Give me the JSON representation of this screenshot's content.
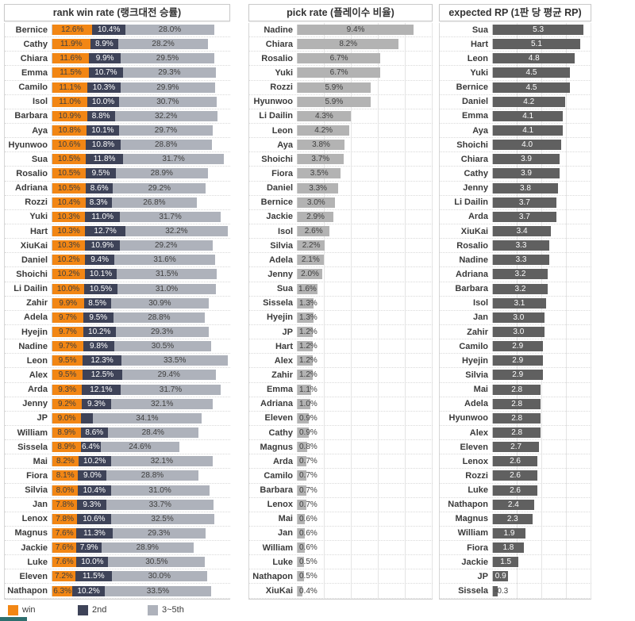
{
  "page": {
    "background": "#ffffff"
  },
  "legend": {
    "items": [
      {
        "label": "win",
        "color": "#F28614"
      },
      {
        "label": "2nd",
        "color": "#3E4358"
      },
      {
        "label": "3~5th",
        "color": "#AEB2BB"
      }
    ]
  },
  "artifacts": {
    "bottom_left_strip_color": "#2E6F6F"
  },
  "chart_data": [
    {
      "type": "bar",
      "orientation": "horizontal",
      "stacked": true,
      "title": "rank win rate (랭크대전 승률)",
      "value_suffix": "%",
      "xlim": [
        0,
        56
      ],
      "grid": false,
      "legend_position": "bottom",
      "series": [
        {
          "name": "win",
          "color": "#F28614",
          "label_color": "#3F3F3F"
        },
        {
          "name": "2nd",
          "color": "#3E4358",
          "label_color": "#FFFFFF"
        },
        {
          "name": "3~5th",
          "color": "#AEB2BB",
          "label_color": "#3F3F3F"
        }
      ],
      "rows": [
        {
          "name": "Bernice",
          "values": [
            12.6,
            10.4,
            28.0
          ]
        },
        {
          "name": "Cathy",
          "values": [
            11.9,
            8.9,
            28.2
          ]
        },
        {
          "name": "Chiara",
          "values": [
            11.6,
            9.9,
            29.5
          ]
        },
        {
          "name": "Emma",
          "values": [
            11.5,
            10.7,
            29.3
          ]
        },
        {
          "name": "Camilo",
          "values": [
            11.1,
            10.3,
            29.9
          ]
        },
        {
          "name": "Isol",
          "values": [
            11.0,
            10.0,
            30.7
          ]
        },
        {
          "name": "Barbara",
          "values": [
            10.9,
            8.8,
            32.2
          ]
        },
        {
          "name": "Aya",
          "values": [
            10.8,
            10.1,
            29.7
          ]
        },
        {
          "name": "Hyunwoo",
          "values": [
            10.6,
            10.8,
            28.8
          ]
        },
        {
          "name": "Sua",
          "values": [
            10.5,
            11.8,
            31.7
          ]
        },
        {
          "name": "Rosalio",
          "values": [
            10.5,
            9.5,
            28.9
          ]
        },
        {
          "name": "Adriana",
          "values": [
            10.5,
            8.6,
            29.2
          ]
        },
        {
          "name": "Rozzi",
          "values": [
            10.4,
            8.3,
            26.8
          ]
        },
        {
          "name": "Yuki",
          "values": [
            10.3,
            11.0,
            31.7
          ]
        },
        {
          "name": "Hart",
          "values": [
            10.3,
            12.7,
            32.2
          ]
        },
        {
          "name": "XiuKai",
          "values": [
            10.3,
            10.9,
            29.2
          ]
        },
        {
          "name": "Daniel",
          "values": [
            10.2,
            9.4,
            31.6
          ]
        },
        {
          "name": "Shoichi",
          "values": [
            10.2,
            10.1,
            31.5
          ]
        },
        {
          "name": "Li Dailin",
          "values": [
            10.0,
            10.5,
            31.0
          ]
        },
        {
          "name": "Zahir",
          "values": [
            9.9,
            8.5,
            30.9
          ]
        },
        {
          "name": "Adela",
          "values": [
            9.7,
            9.5,
            28.8
          ]
        },
        {
          "name": "Hyejin",
          "values": [
            9.7,
            10.2,
            29.3
          ]
        },
        {
          "name": "Nadine",
          "values": [
            9.7,
            9.8,
            30.5
          ]
        },
        {
          "name": "Leon",
          "values": [
            9.5,
            12.3,
            33.5
          ]
        },
        {
          "name": "Alex",
          "values": [
            9.5,
            12.5,
            29.4
          ]
        },
        {
          "name": "Arda",
          "values": [
            9.3,
            12.1,
            31.7
          ]
        },
        {
          "name": "Jenny",
          "values": [
            9.2,
            9.3,
            32.1
          ]
        },
        {
          "name": "JP",
          "values": [
            9.0,
            3.8,
            34.1
          ],
          "unlabeled_segments": [
            1
          ]
        },
        {
          "name": "William",
          "values": [
            8.9,
            8.6,
            28.4
          ]
        },
        {
          "name": "Sissela",
          "values": [
            8.9,
            6.4,
            24.6
          ]
        },
        {
          "name": "Mai",
          "values": [
            8.2,
            10.2,
            32.1
          ]
        },
        {
          "name": "Fiora",
          "values": [
            8.1,
            9.0,
            28.8
          ]
        },
        {
          "name": "Silvia",
          "values": [
            8.0,
            10.4,
            31.0
          ]
        },
        {
          "name": "Jan",
          "values": [
            7.8,
            9.3,
            33.7
          ]
        },
        {
          "name": "Lenox",
          "values": [
            7.8,
            10.6,
            32.5
          ]
        },
        {
          "name": "Magnus",
          "values": [
            7.6,
            11.3,
            29.3
          ]
        },
        {
          "name": "Jackie",
          "values": [
            7.6,
            7.9,
            28.9
          ]
        },
        {
          "name": "Luke",
          "values": [
            7.6,
            10.0,
            30.5
          ]
        },
        {
          "name": "Eleven",
          "values": [
            7.2,
            11.5,
            30.0
          ]
        },
        {
          "name": "Nathapon",
          "values": [
            6.3,
            10.2,
            33.5
          ]
        }
      ]
    },
    {
      "type": "bar",
      "orientation": "horizontal",
      "stacked": false,
      "title": "pick rate (플레이수 비율)",
      "value_suffix": "%",
      "xlim": [
        0,
        11
      ],
      "grid": true,
      "bar_color": "#B3B3B3",
      "label_color": "#3F3F3F",
      "rows": [
        {
          "name": "Nadine",
          "value": 9.4
        },
        {
          "name": "Chiara",
          "value": 8.2
        },
        {
          "name": "Rosalio",
          "value": 6.7
        },
        {
          "name": "Yuki",
          "value": 6.7
        },
        {
          "name": "Rozzi",
          "value": 5.9
        },
        {
          "name": "Hyunwoo",
          "value": 5.9
        },
        {
          "name": "Li Dailin",
          "value": 4.3
        },
        {
          "name": "Leon",
          "value": 4.2
        },
        {
          "name": "Aya",
          "value": 3.8
        },
        {
          "name": "Shoichi",
          "value": 3.7
        },
        {
          "name": "Fiora",
          "value": 3.5
        },
        {
          "name": "Daniel",
          "value": 3.3
        },
        {
          "name": "Bernice",
          "value": 3.0
        },
        {
          "name": "Jackie",
          "value": 2.9
        },
        {
          "name": "Isol",
          "value": 2.6
        },
        {
          "name": "Silvia",
          "value": 2.2
        },
        {
          "name": "Adela",
          "value": 2.1
        },
        {
          "name": "Jenny",
          "value": 2.0
        },
        {
          "name": "Sua",
          "value": 1.6
        },
        {
          "name": "Sissela",
          "value": 1.3
        },
        {
          "name": "Hyejin",
          "value": 1.3
        },
        {
          "name": "JP",
          "value": 1.2
        },
        {
          "name": "Hart",
          "value": 1.2
        },
        {
          "name": "Alex",
          "value": 1.2
        },
        {
          "name": "Zahir",
          "value": 1.2
        },
        {
          "name": "Emma",
          "value": 1.1
        },
        {
          "name": "Adriana",
          "value": 1.0
        },
        {
          "name": "Eleven",
          "value": 0.9
        },
        {
          "name": "Cathy",
          "value": 0.9
        },
        {
          "name": "Magnus",
          "value": 0.8
        },
        {
          "name": "Arda",
          "value": 0.7
        },
        {
          "name": "Camilo",
          "value": 0.7
        },
        {
          "name": "Barbara",
          "value": 0.7
        },
        {
          "name": "Lenox",
          "value": 0.7
        },
        {
          "name": "Mai",
          "value": 0.6
        },
        {
          "name": "Jan",
          "value": 0.6
        },
        {
          "name": "William",
          "value": 0.6
        },
        {
          "name": "Luke",
          "value": 0.5
        },
        {
          "name": "Nathapon",
          "value": 0.5
        },
        {
          "name": "XiuKai",
          "value": 0.4
        }
      ]
    },
    {
      "type": "bar",
      "orientation": "horizontal",
      "stacked": false,
      "title": "expected RP (1판 당 평균 RP)",
      "value_suffix": "",
      "xlim": [
        0,
        5.8
      ],
      "grid": true,
      "bar_color": "#606060",
      "label_color": "#FFFFFF",
      "rows": [
        {
          "name": "Sua",
          "value": 5.3
        },
        {
          "name": "Hart",
          "value": 5.1
        },
        {
          "name": "Leon",
          "value": 4.8
        },
        {
          "name": "Yuki",
          "value": 4.5
        },
        {
          "name": "Bernice",
          "value": 4.5
        },
        {
          "name": "Daniel",
          "value": 4.2
        },
        {
          "name": "Emma",
          "value": 4.1
        },
        {
          "name": "Aya",
          "value": 4.1
        },
        {
          "name": "Shoichi",
          "value": 4.0
        },
        {
          "name": "Chiara",
          "value": 3.9
        },
        {
          "name": "Cathy",
          "value": 3.9
        },
        {
          "name": "Jenny",
          "value": 3.8
        },
        {
          "name": "Li Dailin",
          "value": 3.7
        },
        {
          "name": "Arda",
          "value": 3.7
        },
        {
          "name": "XiuKai",
          "value": 3.4
        },
        {
          "name": "Rosalio",
          "value": 3.3
        },
        {
          "name": "Nadine",
          "value": 3.3
        },
        {
          "name": "Adriana",
          "value": 3.2
        },
        {
          "name": "Barbara",
          "value": 3.2
        },
        {
          "name": "Isol",
          "value": 3.1
        },
        {
          "name": "Jan",
          "value": 3.0
        },
        {
          "name": "Zahir",
          "value": 3.0
        },
        {
          "name": "Camilo",
          "value": 2.9
        },
        {
          "name": "Hyejin",
          "value": 2.9
        },
        {
          "name": "Silvia",
          "value": 2.9
        },
        {
          "name": "Mai",
          "value": 2.8
        },
        {
          "name": "Adela",
          "value": 2.8
        },
        {
          "name": "Hyunwoo",
          "value": 2.8
        },
        {
          "name": "Alex",
          "value": 2.8
        },
        {
          "name": "Eleven",
          "value": 2.7
        },
        {
          "name": "Lenox",
          "value": 2.6
        },
        {
          "name": "Rozzi",
          "value": 2.6
        },
        {
          "name": "Luke",
          "value": 2.6
        },
        {
          "name": "Nathapon",
          "value": 2.4
        },
        {
          "name": "Magnus",
          "value": 2.3
        },
        {
          "name": "William",
          "value": 1.9
        },
        {
          "name": "Fiora",
          "value": 1.8
        },
        {
          "name": "Jackie",
          "value": 1.5
        },
        {
          "name": "JP",
          "value": 0.9
        },
        {
          "name": "Sissela",
          "value": -0.3
        }
      ]
    }
  ]
}
